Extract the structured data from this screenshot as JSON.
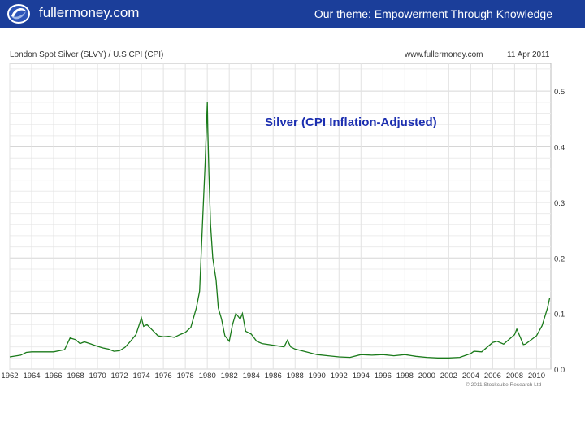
{
  "header": {
    "site_name": "fullermoney.com",
    "theme": "Our theme: Empowerment Through Knowledge",
    "banner_color": "#1b3e9a",
    "logo_icon": "globe-swirl-logo"
  },
  "chart_data": {
    "type": "line",
    "title": "London Spot Silver (SLVY) / U.S CPI (CPI)",
    "source_label": "www.fullermoney.com",
    "date_label": "11 Apr 2011",
    "overlay_title": "Silver (CPI Inflation-Adjusted)",
    "copyright": "© 2011 Stockcube Research Ltd",
    "xlabel": "",
    "ylabel": "",
    "x_ticks": [
      "1962",
      "1964",
      "1966",
      "1968",
      "1970",
      "1972",
      "1974",
      "1976",
      "1978",
      "1980",
      "1982",
      "1984",
      "1986",
      "1988",
      "1990",
      "1992",
      "1994",
      "1996",
      "1998",
      "2000",
      "2002",
      "2004",
      "2006",
      "2008",
      "2010"
    ],
    "y_ticks": [
      "0.0",
      "0.1",
      "0.2",
      "0.3",
      "0.4",
      "0.5"
    ],
    "xlim": [
      1962,
      2011.3
    ],
    "ylim": [
      0,
      0.55
    ],
    "grid": true,
    "y_axis_side": "right",
    "line_color": "#1a7a1a",
    "series": [
      {
        "x": [
          1962,
          1963,
          1963.5,
          1964,
          1965,
          1966,
          1967,
          1967.5,
          1968,
          1968.4,
          1968.8,
          1969.3,
          1970,
          1970.5,
          1971,
          1971.5,
          1972,
          1972.5,
          1973,
          1973.5,
          1974,
          1974.2,
          1974.5,
          1975,
          1975.5,
          1976,
          1976.5,
          1977,
          1977.5,
          1978,
          1978.5,
          1979,
          1979.3,
          1979.6,
          1979.8,
          1980,
          1980.05,
          1980.15,
          1980.3,
          1980.5,
          1980.8,
          1981,
          1981.3,
          1981.6,
          1982,
          1982.3,
          1982.6,
          1983,
          1983.2,
          1983.5,
          1984,
          1984.5,
          1985,
          1986,
          1987,
          1987.3,
          1987.6,
          1988,
          1989,
          1990,
          1991,
          1992,
          1993,
          1994,
          1995,
          1996,
          1997,
          1998,
          1999,
          2000,
          2001,
          2002,
          2003,
          2004,
          2004.3,
          2005,
          2006,
          2006.4,
          2007,
          2008,
          2008.2,
          2008.8,
          2009,
          2010,
          2010.5,
          2010.8,
          2011,
          2011.2
        ],
        "values": [
          0.022,
          0.025,
          0.03,
          0.031,
          0.031,
          0.031,
          0.035,
          0.056,
          0.053,
          0.046,
          0.049,
          0.046,
          0.041,
          0.038,
          0.036,
          0.032,
          0.033,
          0.039,
          0.05,
          0.062,
          0.092,
          0.077,
          0.08,
          0.07,
          0.06,
          0.058,
          0.059,
          0.057,
          0.062,
          0.066,
          0.075,
          0.11,
          0.14,
          0.28,
          0.37,
          0.48,
          0.43,
          0.35,
          0.26,
          0.2,
          0.16,
          0.11,
          0.09,
          0.06,
          0.05,
          0.08,
          0.1,
          0.09,
          0.1,
          0.068,
          0.063,
          0.05,
          0.046,
          0.043,
          0.04,
          0.052,
          0.04,
          0.036,
          0.031,
          0.026,
          0.024,
          0.022,
          0.021,
          0.026,
          0.025,
          0.026,
          0.024,
          0.026,
          0.023,
          0.021,
          0.02,
          0.02,
          0.021,
          0.028,
          0.032,
          0.031,
          0.048,
          0.05,
          0.045,
          0.062,
          0.072,
          0.044,
          0.045,
          0.06,
          0.078,
          0.097,
          0.11,
          0.128
        ]
      }
    ]
  }
}
